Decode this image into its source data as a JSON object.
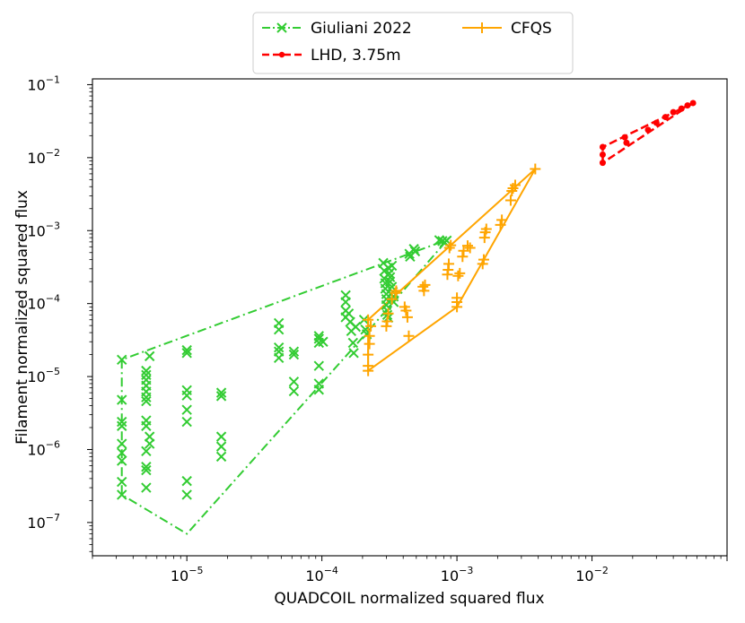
{
  "chart_data": {
    "type": "scatter",
    "title": "",
    "xlabel": "QUADCOIL normalized squared flux",
    "ylabel": "Filament normalized squared flux",
    "xscale": "log",
    "yscale": "log",
    "xlim": [
      2e-06,
      0.1
    ],
    "ylim": [
      3.5e-08,
      0.12
    ],
    "x_ticks": [
      {
        "value": 1e-05,
        "base": "10",
        "exp": "−5"
      },
      {
        "value": 0.0001,
        "base": "10",
        "exp": "−4"
      },
      {
        "value": 0.001,
        "base": "10",
        "exp": "−3"
      },
      {
        "value": 0.01,
        "base": "10",
        "exp": "−2"
      }
    ],
    "y_ticks": [
      {
        "value": 1e-07,
        "base": "10",
        "exp": "−7"
      },
      {
        "value": 1e-06,
        "base": "10",
        "exp": "−6"
      },
      {
        "value": 1e-05,
        "base": "10",
        "exp": "−5"
      },
      {
        "value": 0.0001,
        "base": "10",
        "exp": "−4"
      },
      {
        "value": 0.001,
        "base": "10",
        "exp": "−3"
      },
      {
        "value": 0.01,
        "base": "10",
        "exp": "−2"
      },
      {
        "value": 0.1,
        "base": "10",
        "exp": "−1"
      }
    ],
    "legend": {
      "location": "top-center, above plot",
      "columns": 2
    },
    "series": [
      {
        "name": "Giuliani 2022",
        "color": "#33cc33",
        "marker": "x",
        "line_style": "dash-dot",
        "hull": [
          [
            3.3e-06,
            1.7e-05
          ],
          [
            3.3e-06,
            2.4e-07
          ],
          [
            1e-05,
            7e-08
          ],
          [
            0.00021,
            3.8e-05
          ],
          [
            0.00085,
            0.00075
          ],
          [
            3.3e-06,
            1.7e-05
          ]
        ],
        "points": [
          [
            3.3e-06,
            1.7e-05
          ],
          [
            3.3e-06,
            4.8e-06
          ],
          [
            3.3e-06,
            2.4e-06
          ],
          [
            3.3e-06,
            2.1e-06
          ],
          [
            3.3e-06,
            1.2e-06
          ],
          [
            3.3e-06,
            9e-07
          ],
          [
            3.3e-06,
            7e-07
          ],
          [
            3.3e-06,
            3.6e-07
          ],
          [
            3.3e-06,
            2.4e-07
          ],
          [
            5e-06,
            1.2e-05
          ],
          [
            5e-06,
            1.05e-05
          ],
          [
            5e-06,
            9e-06
          ],
          [
            5e-06,
            7.5e-06
          ],
          [
            5e-06,
            6.2e-06
          ],
          [
            5e-06,
            5.2e-06
          ],
          [
            5e-06,
            4.6e-06
          ],
          [
            5e-06,
            2.5e-06
          ],
          [
            5e-06,
            2.1e-06
          ],
          [
            5e-06,
            9.5e-07
          ],
          [
            5e-06,
            5.8e-07
          ],
          [
            5e-06,
            5.2e-07
          ],
          [
            5e-06,
            3e-07
          ],
          [
            5.3e-06,
            1.9e-05
          ],
          [
            5.3e-06,
            1.5e-06
          ],
          [
            5.3e-06,
            1.2e-06
          ],
          [
            1e-05,
            2.3e-05
          ],
          [
            1e-05,
            2.1e-05
          ],
          [
            1e-05,
            6.5e-06
          ],
          [
            1e-05,
            5.5e-06
          ],
          [
            1e-05,
            3.5e-06
          ],
          [
            1e-05,
            2.4e-06
          ],
          [
            1e-05,
            3.7e-07
          ],
          [
            1e-05,
            2.4e-07
          ],
          [
            1.8e-05,
            6e-06
          ],
          [
            1.8e-05,
            5.4e-06
          ],
          [
            1.8e-05,
            1.5e-06
          ],
          [
            1.8e-05,
            1.1e-06
          ],
          [
            1.8e-05,
            8e-07
          ],
          [
            4.8e-05,
            5.4e-05
          ],
          [
            4.8e-05,
            4.4e-05
          ],
          [
            4.8e-05,
            2.5e-05
          ],
          [
            4.8e-05,
            2.2e-05
          ],
          [
            4.8e-05,
            1.8e-05
          ],
          [
            6.2e-05,
            2.2e-05
          ],
          [
            6.2e-05,
            2e-05
          ],
          [
            6.2e-05,
            8.5e-06
          ],
          [
            6.2e-05,
            6.3e-06
          ],
          [
            9.5e-05,
            3.6e-05
          ],
          [
            9.5e-05,
            3.3e-05
          ],
          [
            9.5e-05,
            2.9e-05
          ],
          [
            9.5e-05,
            1.4e-05
          ],
          [
            9.5e-05,
            8e-06
          ],
          [
            9.5e-05,
            6.6e-06
          ],
          [
            0.000102,
            3e-05
          ],
          [
            0.00015,
            0.00013
          ],
          [
            0.00015,
            0.000105
          ],
          [
            0.00015,
            8e-05
          ],
          [
            0.00015,
            6.5e-05
          ],
          [
            0.000158,
            7.3e-05
          ],
          [
            0.000162,
            5.6e-05
          ],
          [
            0.000165,
            4.2e-05
          ],
          [
            0.00017,
            2.9e-05
          ],
          [
            0.000172,
            2.1e-05
          ],
          [
            0.000178,
            4.8e-05
          ],
          [
            0.000205,
            6e-05
          ],
          [
            0.00021,
            4.4e-05
          ],
          [
            0.000215,
            3.8e-05
          ],
          [
            0.000285,
            0.00036
          ],
          [
            0.00029,
            0.00028
          ],
          [
            0.00029,
            0.00022
          ],
          [
            0.000295,
            0.00019
          ],
          [
            0.000295,
            0.00016
          ],
          [
            0.0003,
            0.000135
          ],
          [
            0.0003,
            0.000115
          ],
          [
            0.0003,
            9.5e-05
          ],
          [
            0.000305,
            8e-05
          ],
          [
            0.000305,
            7e-05
          ],
          [
            0.00031,
            6.4e-05
          ],
          [
            0.00031,
            0.00031
          ],
          [
            0.000315,
            0.00026
          ],
          [
            0.00032,
            0.00023
          ],
          [
            0.00032,
            0.0002
          ],
          [
            0.00033,
            0.00033
          ],
          [
            0.00033,
            0.00017
          ],
          [
            0.000335,
            0.000145
          ],
          [
            0.00034,
            0.000125
          ],
          [
            0.00034,
            0.000105
          ],
          [
            0.000445,
            0.00048
          ],
          [
            0.00045,
            0.00044
          ],
          [
            0.00048,
            0.00056
          ],
          [
            0.00049,
            0.00052
          ],
          [
            0.00074,
            0.00074
          ],
          [
            0.00078,
            0.00072
          ],
          [
            0.00081,
            0.00069
          ],
          [
            0.00084,
            0.00073
          ]
        ]
      },
      {
        "name": "LHD, 3.75m",
        "color": "#ff0000",
        "marker": "o",
        "line_style": "dashed",
        "hull": [
          [
            0.012,
            0.0085
          ],
          [
            0.012,
            0.014
          ],
          [
            0.056,
            0.056
          ],
          [
            0.012,
            0.0085
          ]
        ],
        "points": [
          [
            0.012,
            0.0085
          ],
          [
            0.012,
            0.011
          ],
          [
            0.012,
            0.014
          ],
          [
            0.0175,
            0.019
          ],
          [
            0.018,
            0.016
          ],
          [
            0.026,
            0.024
          ],
          [
            0.03,
            0.03
          ],
          [
            0.035,
            0.036
          ],
          [
            0.04,
            0.042
          ],
          [
            0.046,
            0.047
          ],
          [
            0.051,
            0.052
          ],
          [
            0.056,
            0.056
          ]
        ]
      },
      {
        "name": "CFQS",
        "color": "#ffa500",
        "marker": "+",
        "line_style": "solid",
        "hull": [
          [
            0.00022,
            1.2e-05
          ],
          [
            0.00022,
            6e-05
          ],
          [
            0.0038,
            0.007
          ],
          [
            0.001,
            9e-05
          ],
          [
            0.00022,
            1.2e-05
          ]
        ],
        "points": [
          [
            0.00022,
            1.2e-05
          ],
          [
            0.00022,
            1.4e-05
          ],
          [
            0.00022,
            2e-05
          ],
          [
            0.000225,
            2.8e-05
          ],
          [
            0.000225,
            3.6e-05
          ],
          [
            0.00023,
            4.9e-05
          ],
          [
            0.00022,
            6e-05
          ],
          [
            0.0003,
            4.9e-05
          ],
          [
            0.000305,
            5.7e-05
          ],
          [
            0.00031,
            7.3e-05
          ],
          [
            0.00033,
            0.000115
          ],
          [
            0.00035,
            0.00014
          ],
          [
            0.000355,
            0.00015
          ],
          [
            0.00041,
            9e-05
          ],
          [
            0.00042,
            8e-05
          ],
          [
            0.00043,
            6.5e-05
          ],
          [
            0.00044,
            3.6e-05
          ],
          [
            0.00056,
            0.00017
          ],
          [
            0.00057,
            0.00015
          ],
          [
            0.00058,
            0.00018
          ],
          [
            0.00085,
            0.00025
          ],
          [
            0.00086,
            0.00029
          ],
          [
            0.00087,
            0.00035
          ],
          [
            0.00088,
            0.00058
          ],
          [
            0.0009,
            0.00063
          ],
          [
            0.001,
            9e-05
          ],
          [
            0.001,
            0.000105
          ],
          [
            0.001,
            0.00012
          ],
          [
            0.00102,
            0.00024
          ],
          [
            0.00105,
            0.00026
          ],
          [
            0.0011,
            0.00044
          ],
          [
            0.00112,
            0.00053
          ],
          [
            0.0012,
            0.00062
          ],
          [
            0.00125,
            0.00058
          ],
          [
            0.00155,
            0.00035
          ],
          [
            0.00158,
            0.0004
          ],
          [
            0.0016,
            0.0008
          ],
          [
            0.00162,
            0.00095
          ],
          [
            0.00165,
            0.00105
          ],
          [
            0.0021,
            0.0012
          ],
          [
            0.00215,
            0.0014
          ],
          [
            0.0025,
            0.0026
          ],
          [
            0.00255,
            0.0035
          ],
          [
            0.0026,
            0.0038
          ],
          [
            0.0027,
            0.0042
          ],
          [
            0.0038,
            0.007
          ]
        ]
      }
    ]
  }
}
